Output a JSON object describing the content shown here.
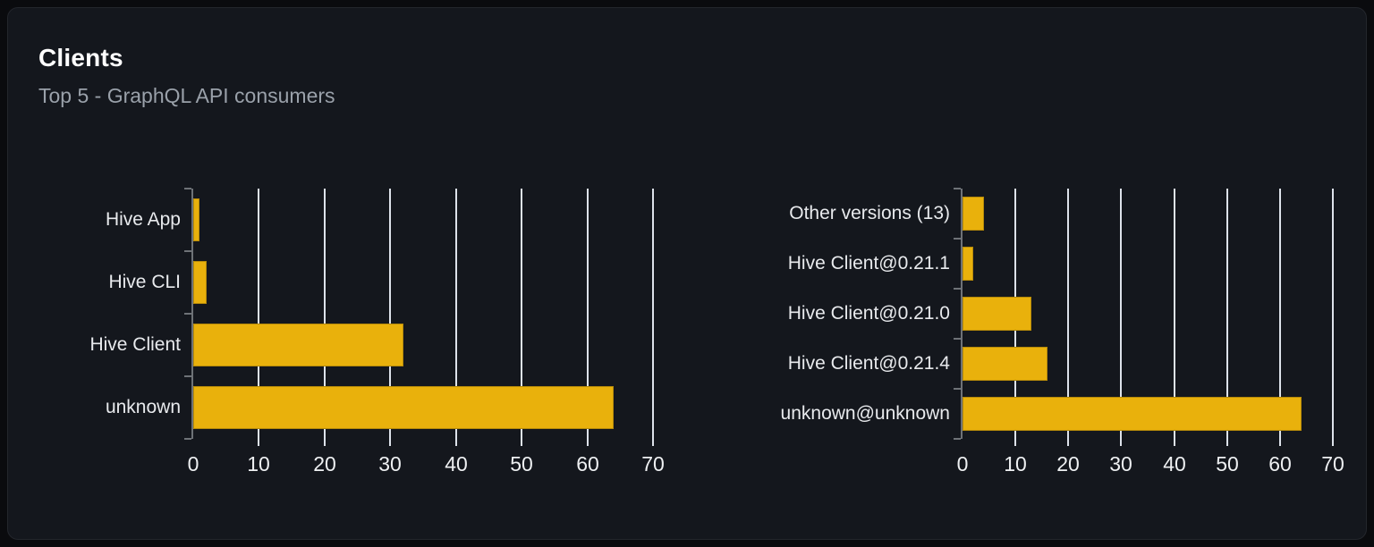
{
  "page": {
    "background": "#0a0b0e"
  },
  "card": {
    "title": "Clients",
    "subtitle": "Top 5 - GraphQL API consumers",
    "background": "#14171d",
    "border_color": "#23262c"
  },
  "colors": {
    "bar": "#e9b10c",
    "gridline": "#dde2ea",
    "axis": "#6e7277",
    "title": "#ffffff",
    "subtitle": "#9aa1aa",
    "category_label": "#e8eaed",
    "tick_label": "#eef0f2"
  },
  "chart_data": [
    {
      "type": "bar",
      "orientation": "horizontal",
      "categories": [
        "Hive App",
        "Hive CLI",
        "Hive Client",
        "unknown"
      ],
      "values": [
        1,
        2,
        32,
        64
      ],
      "xlim": [
        0,
        70
      ],
      "xticks": [
        0,
        10,
        20,
        30,
        40,
        50,
        60,
        70
      ],
      "grid": true,
      "legend": false
    },
    {
      "type": "bar",
      "orientation": "horizontal",
      "categories": [
        "Other versions (13)",
        "Hive Client@0.21.1",
        "Hive Client@0.21.0",
        "Hive Client@0.21.4",
        "unknown@unknown"
      ],
      "values": [
        4,
        2,
        13,
        16,
        64
      ],
      "xlim": [
        0,
        70
      ],
      "xticks": [
        0,
        10,
        20,
        30,
        40,
        50,
        60,
        70
      ],
      "grid": true,
      "legend": false
    }
  ]
}
